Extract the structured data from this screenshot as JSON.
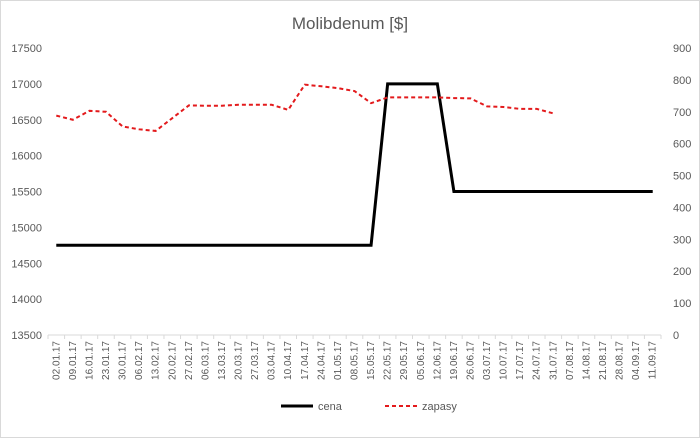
{
  "chart_data": {
    "type": "line",
    "title": "Molibdenum [$]",
    "categories": [
      "02.01.17",
      "09.01.17",
      "16.01.17",
      "23.01.17",
      "30.01.17",
      "06.02.17",
      "13.02.17",
      "20.02.17",
      "27.02.17",
      "06.03.17",
      "13.03.17",
      "20.03.17",
      "27.03.17",
      "03.04.17",
      "10.04.17",
      "17.04.17",
      "24.04.17",
      "01.05.17",
      "08.05.17",
      "15.05.17",
      "22.05.17",
      "29.05.17",
      "05.06.17",
      "12.06.17",
      "19.06.17",
      "26.06.17",
      "03.07.17",
      "10.07.17",
      "17.07.17",
      "24.07.17",
      "31.07.17",
      "07.08.17",
      "14.08.17",
      "21.08.17",
      "28.08.17",
      "04.09.17",
      "11.09.17"
    ],
    "y_left": {
      "min": 13500,
      "max": 17500,
      "step": 500,
      "ticks": [
        "13500",
        "14000",
        "14500",
        "15000",
        "15500",
        "16000",
        "16500",
        "17000",
        "17500"
      ]
    },
    "y_right": {
      "min": 0,
      "max": 900,
      "step": 100,
      "ticks": [
        "0",
        "100",
        "200",
        "300",
        "400",
        "500",
        "600",
        "700",
        "800",
        "900"
      ]
    },
    "series": [
      {
        "name": "cena",
        "axis": "left",
        "color": "#000000",
        "dash": "solid",
        "values": [
          14750,
          14750,
          14750,
          14750,
          14750,
          14750,
          14750,
          14750,
          14750,
          14750,
          14750,
          14750,
          14750,
          14750,
          14750,
          14750,
          14750,
          14750,
          14750,
          14750,
          17000,
          17000,
          17000,
          17000,
          15500,
          15500,
          15500,
          15500,
          15500,
          15500,
          15500,
          15500,
          15500,
          15500,
          15500,
          15500,
          15500
        ]
      },
      {
        "name": "zapasy",
        "axis": "right",
        "color": "#e31a1c",
        "dash": "dashed",
        "values": [
          688,
          675,
          703,
          700,
          654,
          645,
          640,
          680,
          720,
          719,
          719,
          722,
          722,
          722,
          706,
          785,
          780,
          774,
          765,
          727,
          745,
          745,
          745,
          745,
          743,
          742,
          717,
          715,
          709,
          709,
          695,
          null,
          null,
          null,
          null,
          null,
          null
        ]
      }
    ],
    "legend_position": "bottom",
    "grid": false
  }
}
